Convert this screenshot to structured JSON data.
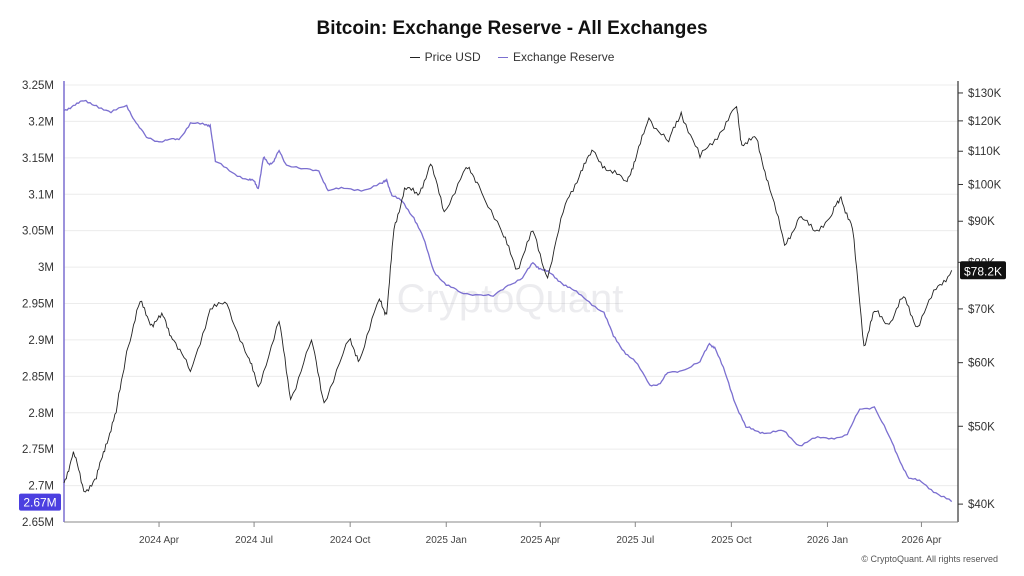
{
  "page": {
    "title": "Bitcoin: Exchange Reserve - All Exchanges",
    "credit": "© CryptoQuant. All rights reserved",
    "watermark": "CryptoQuant"
  },
  "legend": [
    {
      "label": "Price USD"
    },
    {
      "label": "Exchange Reserve"
    }
  ],
  "colors": {
    "price": "#222222",
    "reserve": "#7b6fd0",
    "reserve_badge": "#4b3fe0",
    "price_badge": "#111111"
  },
  "chart_data": {
    "type": "line",
    "title": "Bitcoin: Exchange Reserve - All Exchanges",
    "grid": true,
    "legend_position": "top-center",
    "x_ticks": [
      "2024 Apr",
      "2024 Jul",
      "2024 Oct",
      "2025 Jan",
      "2025 Apr",
      "2025 Jul",
      "2025 Oct",
      "2026 Jan",
      "2026 Apr"
    ],
    "x_range": [
      "2024-01-01",
      "2026-05-06"
    ],
    "left_axis": {
      "ticks": [
        "3.25M",
        "3.2M",
        "3.15M",
        "3.1M",
        "3.05M",
        "3M",
        "2.95M",
        "2.9M",
        "2.85M",
        "2.8M",
        "2.75M",
        "2.7M",
        "2.65M"
      ],
      "range": [
        2650000,
        3250000
      ]
    },
    "right_axis": {
      "ticks": [
        "$130K",
        "$120K",
        "$110K",
        "$100K",
        "$90K",
        "$80K",
        "$70K",
        "$60K",
        "$50K",
        "$40K"
      ],
      "values": [
        130000,
        120000,
        110000,
        100000,
        90000,
        80000,
        70000,
        60000,
        50000,
        40000
      ],
      "scale": "log",
      "range": [
        38000,
        133000
      ]
    },
    "current_labels": {
      "reserve": "2.67M",
      "price": "$78.2K"
    },
    "series": [
      {
        "name": "Exchange Reserve",
        "axis": "left",
        "points": [
          [
            "2024-01-01",
            3215000
          ],
          [
            "2024-01-10",
            3222000
          ],
          [
            "2024-01-20",
            3228000
          ],
          [
            "2024-02-01",
            3222000
          ],
          [
            "2024-02-15",
            3212000
          ],
          [
            "2024-03-01",
            3222000
          ],
          [
            "2024-03-10",
            3198000
          ],
          [
            "2024-03-20",
            3178000
          ],
          [
            "2024-04-01",
            3172000
          ],
          [
            "2024-04-10",
            3175000
          ],
          [
            "2024-04-20",
            3175000
          ],
          [
            "2024-05-01",
            3198000
          ],
          [
            "2024-05-15",
            3195000
          ],
          [
            "2024-05-20",
            3195000
          ],
          [
            "2024-05-25",
            3145000
          ],
          [
            "2024-06-10",
            3130000
          ],
          [
            "2024-06-25",
            3120000
          ],
          [
            "2024-07-01",
            3118000
          ],
          [
            "2024-07-05",
            3108000
          ],
          [
            "2024-07-10",
            3150000
          ],
          [
            "2024-07-15",
            3142000
          ],
          [
            "2024-07-20",
            3145000
          ],
          [
            "2024-07-25",
            3160000
          ],
          [
            "2024-08-01",
            3140000
          ],
          [
            "2024-08-15",
            3135000
          ],
          [
            "2024-09-01",
            3132000
          ],
          [
            "2024-09-10",
            3105000
          ],
          [
            "2024-09-25",
            3108000
          ],
          [
            "2024-10-15",
            3106000
          ],
          [
            "2024-11-01",
            3115000
          ],
          [
            "2024-11-05",
            3120000
          ],
          [
            "2024-11-10",
            3098000
          ],
          [
            "2024-11-20",
            3090000
          ],
          [
            "2024-12-01",
            3068000
          ],
          [
            "2024-12-10",
            3040000
          ],
          [
            "2024-12-20",
            2995000
          ],
          [
            "2025-01-01",
            2975000
          ],
          [
            "2025-01-15",
            2965000
          ],
          [
            "2025-02-01",
            2962000
          ],
          [
            "2025-02-15",
            2960000
          ],
          [
            "2025-03-01",
            2975000
          ],
          [
            "2025-03-15",
            2985000
          ],
          [
            "2025-03-25",
            3006000
          ],
          [
            "2025-04-01",
            2998000
          ],
          [
            "2025-04-10",
            2992000
          ],
          [
            "2025-04-20",
            2980000
          ],
          [
            "2025-05-01",
            2970000
          ],
          [
            "2025-05-15",
            2955000
          ],
          [
            "2025-06-01",
            2938000
          ],
          [
            "2025-06-10",
            2905000
          ],
          [
            "2025-06-20",
            2885000
          ],
          [
            "2025-07-01",
            2870000
          ],
          [
            "2025-07-15",
            2838000
          ],
          [
            "2025-07-25",
            2840000
          ],
          [
            "2025-08-01",
            2855000
          ],
          [
            "2025-08-15",
            2858000
          ],
          [
            "2025-09-01",
            2870000
          ],
          [
            "2025-09-10",
            2895000
          ],
          [
            "2025-09-15",
            2890000
          ],
          [
            "2025-09-25",
            2855000
          ],
          [
            "2025-10-05",
            2812000
          ],
          [
            "2025-10-15",
            2780000
          ],
          [
            "2025-10-25",
            2775000
          ],
          [
            "2025-11-05",
            2772000
          ],
          [
            "2025-11-20",
            2775000
          ],
          [
            "2025-12-05",
            2755000
          ],
          [
            "2025-12-20",
            2765000
          ],
          [
            "2026-01-05",
            2765000
          ],
          [
            "2026-01-20",
            2770000
          ],
          [
            "2026-02-01",
            2805000
          ],
          [
            "2026-02-15",
            2808000
          ],
          [
            "2026-03-01",
            2768000
          ],
          [
            "2026-03-10",
            2738000
          ],
          [
            "2026-03-20",
            2710000
          ],
          [
            "2026-04-01",
            2705000
          ],
          [
            "2026-04-15",
            2690000
          ],
          [
            "2026-04-30",
            2678000
          ]
        ]
      },
      {
        "name": "Price USD",
        "axis": "right",
        "points": [
          [
            "2024-01-01",
            42500
          ],
          [
            "2024-01-10",
            46500
          ],
          [
            "2024-01-20",
            41500
          ],
          [
            "2024-02-01",
            43000
          ],
          [
            "2024-02-10",
            47500
          ],
          [
            "2024-02-20",
            52000
          ],
          [
            "2024-03-01",
            62000
          ],
          [
            "2024-03-14",
            71500
          ],
          [
            "2024-03-25",
            67000
          ],
          [
            "2024-04-05",
            68500
          ],
          [
            "2024-04-15",
            64000
          ],
          [
            "2024-05-01",
            58500
          ],
          [
            "2024-05-20",
            70000
          ],
          [
            "2024-06-05",
            71000
          ],
          [
            "2024-06-25",
            61000
          ],
          [
            "2024-07-05",
            56000
          ],
          [
            "2024-07-25",
            67500
          ],
          [
            "2024-08-05",
            54000
          ],
          [
            "2024-08-25",
            64000
          ],
          [
            "2024-09-06",
            53500
          ],
          [
            "2024-09-30",
            64000
          ],
          [
            "2024-10-10",
            60500
          ],
          [
            "2024-10-29",
            72000
          ],
          [
            "2024-11-05",
            69000
          ],
          [
            "2024-11-12",
            88000
          ],
          [
            "2024-11-22",
            99000
          ],
          [
            "2024-12-05",
            97000
          ],
          [
            "2024-12-17",
            106000
          ],
          [
            "2024-12-30",
            92500
          ],
          [
            "2025-01-20",
            105000
          ],
          [
            "2025-02-01",
            100000
          ],
          [
            "2025-02-25",
            86000
          ],
          [
            "2025-03-10",
            78500
          ],
          [
            "2025-03-25",
            87500
          ],
          [
            "2025-04-08",
            76500
          ],
          [
            "2025-04-25",
            94500
          ],
          [
            "2025-05-10",
            104000
          ],
          [
            "2025-05-22",
            110000
          ],
          [
            "2025-06-05",
            104000
          ],
          [
            "2025-06-22",
            101000
          ],
          [
            "2025-07-01",
            107000
          ],
          [
            "2025-07-14",
            121000
          ],
          [
            "2025-08-02",
            113000
          ],
          [
            "2025-08-14",
            123000
          ],
          [
            "2025-09-01",
            108000
          ],
          [
            "2025-09-20",
            116000
          ],
          [
            "2025-10-06",
            125000
          ],
          [
            "2025-10-11",
            112000
          ],
          [
            "2025-10-25",
            114000
          ],
          [
            "2025-11-05",
            101000
          ],
          [
            "2025-11-21",
            84000
          ],
          [
            "2025-12-05",
            91000
          ],
          [
            "2025-12-20",
            87500
          ],
          [
            "2026-01-05",
            91500
          ],
          [
            "2026-01-14",
            96500
          ],
          [
            "2026-01-25",
            88000
          ],
          [
            "2026-02-05",
            63000
          ],
          [
            "2026-02-15",
            69500
          ],
          [
            "2026-03-01",
            67000
          ],
          [
            "2026-03-15",
            72500
          ],
          [
            "2026-03-28",
            66500
          ],
          [
            "2026-04-15",
            74000
          ],
          [
            "2026-04-30",
            78200
          ]
        ]
      }
    ]
  }
}
